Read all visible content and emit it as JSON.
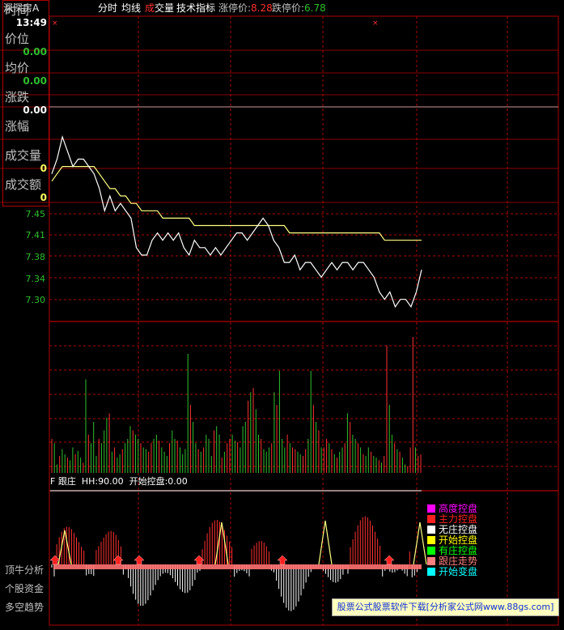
{
  "header": {
    "stock_name": "深深房A",
    "menu": [
      "分时",
      "均线"
    ],
    "menu_volume_prefix": "成",
    "menu_volume_suffix": "交量",
    "menu_tech": "技术指标",
    "limit_up_label": "涨停价:",
    "limit_up_value": "8.28",
    "limit_down_label": "跌停价:",
    "limit_down_value": "6.78"
  },
  "info_panel": {
    "time_label": "时间",
    "time_value": "13:49",
    "price_label": "价位",
    "price_value": "0.00",
    "avg_label": "均价",
    "avg_value": "0.00",
    "change_label": "涨跌",
    "change_value": "0.00",
    "pct_label": "涨幅",
    "volume_label": "成交量",
    "volume_value": "0",
    "amount_label": "成交额",
    "amount_value": "0"
  },
  "price_axis": [
    "7.45",
    "7.41",
    "7.38",
    "7.34",
    "7.30"
  ],
  "indicator": {
    "name": "F 跟庄",
    "hh": "HH:90.00",
    "start": "开始控盘:0.00"
  },
  "legend": [
    {
      "label": "高度控盘",
      "color": "#ff00ff"
    },
    {
      "label": "主力控盘",
      "color": "#ff2020"
    },
    {
      "label": "无庄控盘",
      "color": "#ffffff"
    },
    {
      "label": "开始控盘",
      "color": "#ffff00"
    },
    {
      "label": "有庄控盘",
      "color": "#00ff00"
    },
    {
      "label": "跟庄走势",
      "color": "#ff8080"
    },
    {
      "label": "开始变盘",
      "color": "#00ffff"
    }
  ],
  "side_buttons": [
    "顶牛分析",
    "个股资金",
    "多空趋势"
  ],
  "ad_text": "股票公式股票软件下载[分析家公式网www.88gs.com]",
  "colors": {
    "grid_red": "#b00000",
    "up": "#ff3030",
    "down": "#2fbf2f",
    "price_line": "#ffffff",
    "avg_line": "#ffff80"
  },
  "chart_data": [
    {
      "type": "line",
      "title": "",
      "ylim": [
        7.26,
        7.52
      ],
      "yticks": [
        7.45,
        7.41,
        7.38,
        7.34,
        7.3
      ],
      "series": [
        {
          "values": [
            7.46,
            7.48,
            7.51,
            7.49,
            7.47,
            7.48,
            7.48,
            7.47,
            7.46,
            7.44,
            7.41,
            7.43,
            7.41,
            7.42,
            7.41,
            7.4,
            7.36,
            7.35,
            7.35,
            7.37,
            7.38,
            7.37,
            7.38,
            7.37,
            7.38,
            7.36,
            7.35,
            7.37,
            7.36,
            7.36,
            7.35,
            7.36,
            7.35,
            7.36,
            7.37,
            7.38,
            7.38,
            7.37,
            7.38,
            7.39,
            7.4,
            7.39,
            7.37,
            7.36,
            7.34,
            7.34,
            7.35,
            7.33,
            7.34,
            7.34,
            7.33,
            7.32,
            7.33,
            7.34,
            7.33,
            7.34,
            7.34,
            7.33,
            7.34,
            7.34,
            7.33,
            7.32,
            7.3,
            7.29,
            7.3,
            7.28,
            7.29,
            7.29,
            7.28,
            7.3,
            7.33
          ]
        },
        {
          "values": [
            7.45,
            7.46,
            7.47,
            7.47,
            7.47,
            7.47,
            7.47,
            7.47,
            7.47,
            7.46,
            7.45,
            7.44,
            7.44,
            7.43,
            7.43,
            7.42,
            7.42,
            7.41,
            7.41,
            7.41,
            7.41,
            7.4,
            7.4,
            7.4,
            7.4,
            7.4,
            7.4,
            7.39,
            7.39,
            7.39,
            7.39,
            7.39,
            7.39,
            7.39,
            7.39,
            7.39,
            7.39,
            7.39,
            7.39,
            7.39,
            7.39,
            7.39,
            7.39,
            7.39,
            7.39,
            7.38,
            7.38,
            7.38,
            7.38,
            7.38,
            7.38,
            7.38,
            7.38,
            7.38,
            7.38,
            7.38,
            7.38,
            7.38,
            7.38,
            7.38,
            7.38,
            7.38,
            7.38,
            7.37,
            7.37,
            7.37,
            7.37,
            7.37,
            7.37,
            7.37,
            7.37
          ]
        }
      ]
    },
    {
      "type": "bar",
      "title": "",
      "values": [
        40,
        35,
        10,
        20,
        28,
        22,
        18,
        15,
        30,
        22,
        26,
        18,
        12,
        110,
        45,
        35,
        60,
        20,
        40,
        35,
        50,
        65,
        70,
        25,
        30,
        18,
        22,
        28,
        35,
        40,
        55,
        50,
        45,
        40,
        35,
        30,
        28,
        25,
        35,
        40,
        45,
        38,
        30,
        25,
        20,
        35,
        50,
        40,
        38,
        30,
        22,
        28,
        140,
        80,
        60,
        35,
        28,
        25,
        30,
        45,
        40,
        20,
        50,
        55,
        45,
        18,
        25,
        35,
        40,
        45,
        38,
        36,
        30,
        55,
        60,
        85,
        95,
        100,
        75,
        45,
        40,
        28,
        25,
        30,
        35,
        95,
        80,
        120,
        40,
        30,
        45,
        35,
        30,
        28,
        25,
        22,
        20,
        28,
        40,
        120,
        80,
        60,
        50,
        30,
        30,
        40,
        35,
        28,
        22,
        18,
        25,
        30,
        35,
        70,
        60,
        45,
        40,
        35,
        30,
        22,
        20,
        30,
        25,
        20,
        18,
        15,
        12,
        20,
        150,
        80,
        45,
        35,
        28,
        25,
        18,
        10,
        8,
        30,
        160,
        30,
        20,
        22
      ],
      "dir": [
        1,
        0,
        0,
        1,
        0,
        0,
        1,
        0,
        0,
        1,
        0,
        0,
        1,
        0,
        1,
        0,
        0,
        0,
        1,
        0,
        0,
        0,
        1,
        0,
        1,
        0,
        0,
        1,
        0,
        0,
        0,
        1,
        0,
        0,
        1,
        0,
        0,
        1,
        1,
        0,
        0,
        1,
        0,
        0,
        0,
        1,
        0,
        0,
        1,
        0,
        0,
        0,
        0,
        1,
        0,
        0,
        1,
        0,
        1,
        0,
        0,
        0,
        1,
        0,
        0,
        1,
        0,
        1,
        1,
        0,
        0,
        1,
        0,
        0,
        0,
        1,
        0,
        1,
        0,
        0,
        1,
        0,
        0,
        0,
        1,
        0,
        1,
        0,
        0,
        0,
        1,
        0,
        1,
        1,
        0,
        0,
        1,
        1,
        0,
        0,
        1,
        0,
        1,
        0,
        1,
        1,
        0,
        1,
        0,
        1,
        0,
        0,
        1,
        0,
        1,
        0,
        0,
        1,
        0,
        1,
        0,
        0,
        1,
        0,
        0,
        1,
        0,
        1,
        1,
        0,
        0,
        1,
        0,
        1,
        0,
        0,
        1,
        1,
        1,
        0,
        1,
        1
      ]
    }
  ]
}
